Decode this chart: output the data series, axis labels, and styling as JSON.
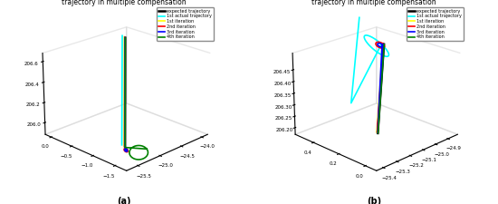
{
  "title": "trajectory in multiple compensation",
  "legend_entries": [
    "expected trajectory",
    "1st actual trajectory",
    "1st iteration",
    "2nd iteration",
    "3rd iteration",
    "4th iteration"
  ],
  "colors": [
    "black",
    "cyan",
    "yellow",
    "red",
    "blue",
    "green"
  ],
  "linewidths": [
    1.8,
    1.2,
    1.2,
    1.2,
    1.2,
    1.2
  ],
  "subplot_a": {
    "xlabel_ticks": [
      -25.5,
      -25.0,
      -24.5,
      -24.0
    ],
    "ylabel_ticks": [
      -1.5,
      -1.0,
      -0.5,
      0.0
    ],
    "zlabel_ticks": [
      206.0,
      206.2,
      206.4,
      206.6
    ],
    "xlim": [
      -25.75,
      -23.85
    ],
    "ylim": [
      -1.75,
      0.15
    ],
    "zlim": [
      205.88,
      206.68
    ],
    "elev": 22,
    "azim": 225,
    "label": "(a)"
  },
  "subplot_b": {
    "xlabel_ticks": [
      -25.4,
      -25.3,
      -25.2,
      -25.1,
      -25.0,
      -24.9
    ],
    "ylabel_ticks": [
      0.0,
      0.2,
      0.4
    ],
    "zlabel_ticks": [
      206.2,
      206.25,
      206.3,
      206.35,
      206.4,
      206.45
    ],
    "xlim": [
      -25.45,
      -24.82
    ],
    "ylim": [
      -0.08,
      0.55
    ],
    "zlim": [
      206.17,
      206.52
    ],
    "elev": 22,
    "azim": 225,
    "label": "(b)"
  },
  "background_color": "#ffffff"
}
